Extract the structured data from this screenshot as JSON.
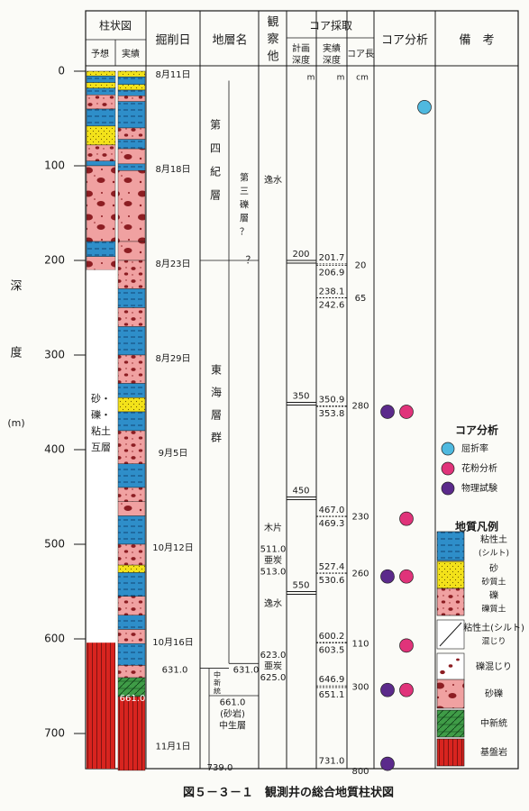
{
  "headers": {
    "column_diagram": "柱状図",
    "predicted": "予想",
    "actual": "実績",
    "excavation_date": "掘削日",
    "stratum_name": "地層名",
    "observation_other": "観察他",
    "core_sampling": "コア採取",
    "planned_depth": "計画深度",
    "actual_depth": "実績深度",
    "core_length": "コア長",
    "core_analysis": "コア分析",
    "remarks": "備　考"
  },
  "units": {
    "m1": "m",
    "m2": "m",
    "cm": "cm"
  },
  "depth_axis": {
    "label_chars": [
      "深",
      "度",
      "(m)"
    ],
    "ticks": [
      0,
      100,
      200,
      300,
      400,
      500,
      600,
      700
    ]
  },
  "predicted_column_label": [
    "砂・",
    "礫・",
    "粘土",
    "互層"
  ],
  "dates": [
    {
      "depth": 0,
      "text": "8月11日"
    },
    {
      "depth": 100,
      "text": "8月18日"
    },
    {
      "depth": 200,
      "text": "8月23日"
    },
    {
      "depth": 300,
      "text": "8月29日"
    },
    {
      "depth": 400,
      "text": "9月5日"
    },
    {
      "depth": 500,
      "text": "10月12日"
    },
    {
      "depth": 600,
      "text": "10月16日"
    },
    {
      "depth": 710,
      "text": "11月1日"
    }
  ],
  "strata": {
    "quaternary": "第四紀層",
    "third_gravel": "第三礫層？",
    "question": "？",
    "tokai": "東海層群",
    "middle_label": [
      "中",
      "新",
      "統"
    ],
    "mesozoic": [
      "661.0",
      "(砂岩)",
      "中生層"
    ],
    "boundary_left": "631.0",
    "boundary_right": "631.0",
    "bottom": "739.0",
    "column_bottom": "661.0"
  },
  "observations": [
    {
      "depth": 115,
      "text": "逸水"
    },
    {
      "depth": 483,
      "text": "木片"
    },
    {
      "depth": 505,
      "text": "511.0"
    },
    {
      "depth": 517,
      "text": "亜炭"
    },
    {
      "depth": 529,
      "text": "513.0"
    },
    {
      "depth": 563,
      "text": "逸水"
    },
    {
      "depth": 617,
      "text": "623.0"
    },
    {
      "depth": 629,
      "text": "亜炭"
    },
    {
      "depth": 641,
      "text": "625.0"
    }
  ],
  "planned_depths": [
    {
      "depth": 200,
      "text": "200"
    },
    {
      "depth": 350,
      "text": "350"
    },
    {
      "depth": 450,
      "text": "450"
    },
    {
      "depth": 550,
      "text": "550"
    }
  ],
  "actual_depths": [
    {
      "depth": 197,
      "text": "201.7",
      "sep": "dashed"
    },
    {
      "depth": 213,
      "text": "206.9",
      "sep": "solid"
    },
    {
      "depth": 233,
      "text": "238.1",
      "sep": "dashed"
    },
    {
      "depth": 247,
      "text": "242.6",
      "sep": "solid"
    },
    {
      "depth": 347,
      "text": "350.9",
      "sep": "dashed"
    },
    {
      "depth": 362,
      "text": "353.8",
      "sep": "solid"
    },
    {
      "depth": 464,
      "text": "467.0",
      "sep": "dashed"
    },
    {
      "depth": 478,
      "text": "469.3",
      "sep": "solid"
    },
    {
      "depth": 524,
      "text": "527.4",
      "sep": "dashed"
    },
    {
      "depth": 538,
      "text": "530.6",
      "sep": "solid"
    },
    {
      "depth": 597,
      "text": "600.2",
      "sep": "dashed"
    },
    {
      "depth": 612,
      "text": "603.5",
      "sep": "solid"
    },
    {
      "depth": 643,
      "text": "646.9",
      "sep": "dashed"
    },
    {
      "depth": 659,
      "text": "651.1",
      "sep": "solid"
    },
    {
      "depth": 729,
      "text": "731.0",
      "sep": "none"
    }
  ],
  "core_lengths": [
    {
      "depth": 205,
      "text": "20"
    },
    {
      "depth": 240,
      "text": "65"
    },
    {
      "depth": 354,
      "text": "280"
    },
    {
      "depth": 471,
      "text": "230"
    },
    {
      "depth": 531,
      "text": "260"
    },
    {
      "depth": 605,
      "text": "110"
    },
    {
      "depth": 651,
      "text": "300"
    },
    {
      "depth": 740,
      "text": "800"
    }
  ],
  "analysis_points": [
    {
      "depth": 360,
      "type": "physical"
    },
    {
      "depth": 360,
      "type": "pollen"
    },
    {
      "depth": 473,
      "type": "pollen"
    },
    {
      "depth": 534,
      "type": "physical"
    },
    {
      "depth": 534,
      "type": "pollen"
    },
    {
      "depth": 607,
      "type": "pollen"
    },
    {
      "depth": 654,
      "type": "physical"
    },
    {
      "depth": 654,
      "type": "pollen"
    },
    {
      "depth": 732,
      "type": "physical"
    },
    {
      "depth": 38,
      "type": "refraction"
    }
  ],
  "legend": {
    "analysis_title": "コア分析",
    "analysis_items": [
      {
        "type": "refraction",
        "label": "屈折率"
      },
      {
        "type": "pollen",
        "label": "花粉分析"
      },
      {
        "type": "physical",
        "label": "物理試験"
      }
    ],
    "geology_title": "地質凡例",
    "geology_items": [
      {
        "pattern": "clay",
        "label": "粘性土",
        "sub": "(シルト)"
      },
      {
        "pattern": "sand",
        "label": "砂",
        "sub": "砂質土"
      },
      {
        "pattern": "gravel",
        "label": "礫",
        "sub": "礫質土"
      },
      {
        "pattern": "silt_mix",
        "label": "粘性土(シルト)",
        "sub": "混じり"
      },
      {
        "pattern": "gravel_mix",
        "label": "礫混じり",
        "sub": ""
      },
      {
        "pattern": "sandy_gravel",
        "label": "砂礫",
        "sub": ""
      },
      {
        "pattern": "miocene",
        "label": "中新統",
        "sub": ""
      },
      {
        "pattern": "basement",
        "label": "基盤岩",
        "sub": ""
      }
    ]
  },
  "colors": {
    "clay": "#2e8ec9",
    "sand": "#f3e21a",
    "gravel": "#f0a1a1",
    "miocene": "#3f9c47",
    "basement": "#d8241f",
    "refraction": "#4fb9df",
    "pollen": "#e0337a",
    "physical": "#5b2a8b"
  },
  "caption": "図５－３－１　観測井の総合地質柱状図"
}
